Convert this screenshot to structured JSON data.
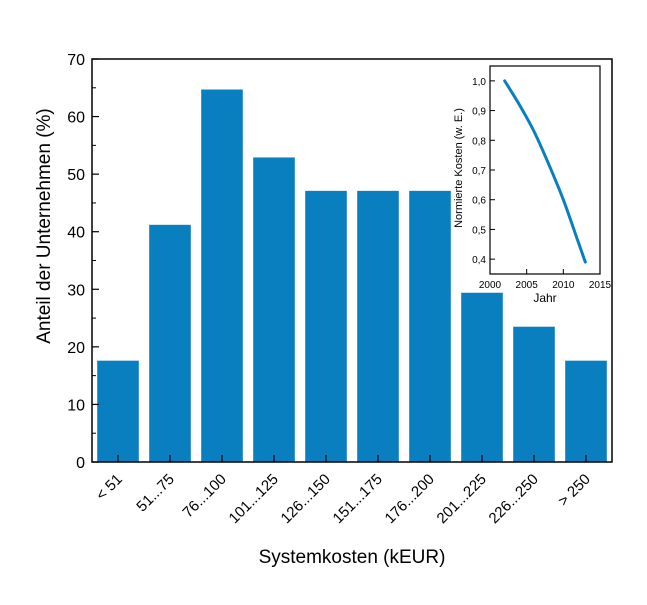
{
  "chart_data": [
    {
      "type": "bar",
      "xlabel": "Systemkosten (kEUR)",
      "ylabel": "Anteil der Unternehmen (%)",
      "ylim": [
        0,
        70
      ],
      "yticks": [
        "0",
        "10",
        "20",
        "30",
        "40",
        "50",
        "60",
        "70"
      ],
      "grid": false,
      "bar_color": "#0a7fc0",
      "categories": [
        "< 51",
        "51...75",
        "76...100",
        "101...125",
        "126...150",
        "151...175",
        "176...200",
        "201...225",
        "226...250",
        "> 250"
      ],
      "values": [
        17.6,
        41.2,
        64.7,
        52.9,
        47.1,
        47.1,
        47.1,
        29.4,
        23.5,
        17.6
      ]
    },
    {
      "type": "line",
      "xlabel": "Jahr",
      "ylabel": "Normierte Kosten (w. E.)",
      "xlim": [
        2000,
        2015
      ],
      "ylim": [
        0.35,
        1.05
      ],
      "xticks": [
        "2000",
        "2005",
        "2010",
        "2015"
      ],
      "yticks": [
        "0,4",
        "0,5",
        "0,6",
        "0,7",
        "0,8",
        "0,9",
        "1,0"
      ],
      "line_color": "#0a7fc0",
      "x": [
        2002,
        2004,
        2006,
        2008,
        2010,
        2012,
        2013
      ],
      "y": [
        1.0,
        0.92,
        0.83,
        0.72,
        0.6,
        0.46,
        0.39
      ]
    }
  ]
}
